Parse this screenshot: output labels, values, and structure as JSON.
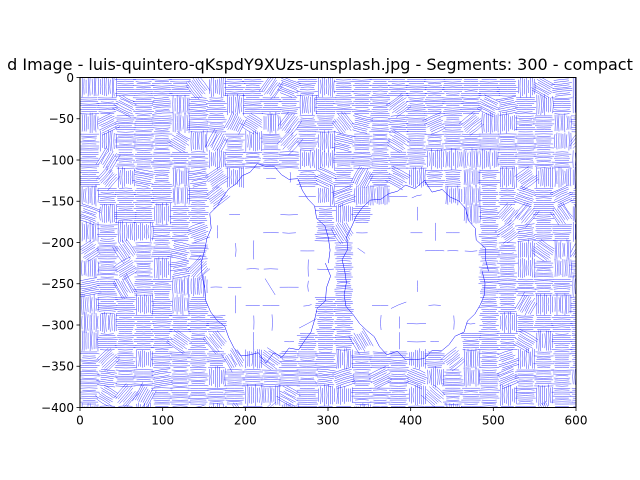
{
  "chart_data": {
    "type": "line",
    "title": "d Image - luis-quintero-qKspdY9XUzs-unsplash.jpg - Segments: 300 - compact",
    "xlabel": "",
    "ylabel": "",
    "xlim": [
      0,
      600
    ],
    "ylim": [
      -400,
      0
    ],
    "x_ticks": [
      "0",
      "100",
      "200",
      "300",
      "400",
      "500",
      "600"
    ],
    "y_ticks": [
      "0",
      "−50",
      "−100",
      "−150",
      "−200",
      "−250",
      "−300",
      "−350",
      "−400"
    ],
    "grid": false,
    "legend": "none",
    "line_color": "#0000ff",
    "background_color": "#ffffff",
    "segments": 300,
    "regions": [
      {
        "name": "left-hand",
        "x": [
          150,
          300
        ],
        "y": [
          -340,
          -110
        ],
        "density": "sparse"
      },
      {
        "name": "right-hand",
        "x": [
          320,
          490
        ],
        "y": [
          -340,
          -130
        ],
        "density": "sparse"
      },
      {
        "name": "background",
        "x": [
          0,
          600
        ],
        "y": [
          -400,
          0
        ],
        "density": "dense"
      }
    ]
  }
}
